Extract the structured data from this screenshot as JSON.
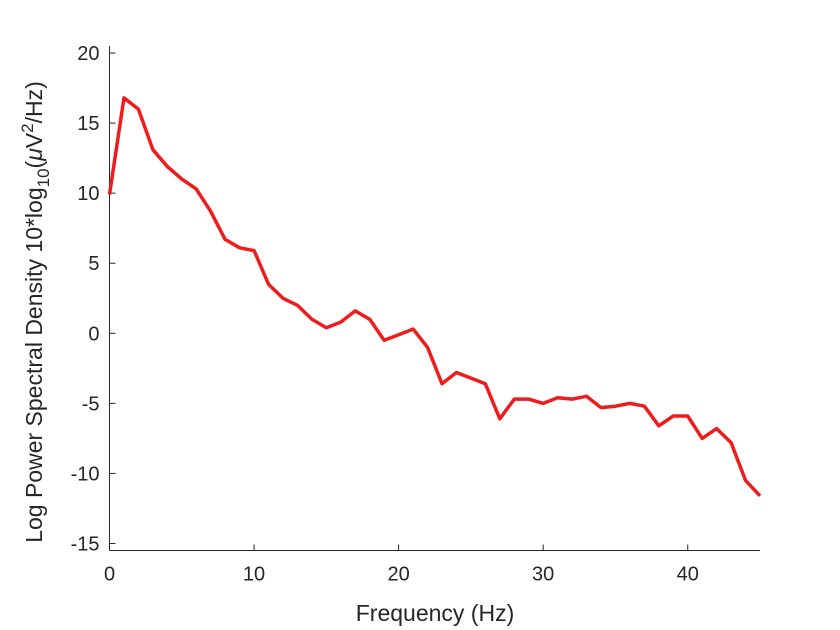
{
  "chart_data": {
    "type": "line",
    "title": "",
    "xlabel": "Frequency (Hz)",
    "ylabel_parts": [
      "Log Power Spectral Density 10*log",
      "10",
      "(",
      "μ",
      "V",
      "2",
      "/Hz)"
    ],
    "xlim": [
      0,
      45
    ],
    "ylim": [
      -15.5,
      20.5
    ],
    "xticks": [
      0,
      10,
      20,
      30,
      40
    ],
    "yticks": [
      -15,
      -10,
      -5,
      0,
      5,
      10,
      15,
      20
    ],
    "grid": false,
    "line_color": "#ee1c1c",
    "series": [
      {
        "x": [
          0,
          1,
          2,
          3,
          4,
          5,
          6,
          7,
          8,
          9,
          10,
          11,
          12,
          13,
          14,
          15,
          16,
          17,
          18,
          19,
          20,
          21,
          22,
          23,
          24,
          25,
          26,
          27,
          28,
          29,
          30,
          31,
          32,
          33,
          34,
          35,
          36,
          37,
          38,
          39,
          40,
          41,
          42,
          43,
          44,
          45
        ],
        "values": [
          9.9,
          16.8,
          16.0,
          13.1,
          11.9,
          11.0,
          10.3,
          8.7,
          6.7,
          6.1,
          5.9,
          3.5,
          2.5,
          2.0,
          1.0,
          0.4,
          0.8,
          1.6,
          1.0,
          -0.5,
          -0.1,
          0.3,
          -1.0,
          -3.6,
          -2.8,
          -3.2,
          -3.6,
          -6.1,
          -4.7,
          -4.7,
          -5.0,
          -4.6,
          -4.7,
          -4.5,
          -5.3,
          -5.2,
          -5.0,
          -5.2,
          -6.6,
          -5.9,
          -5.9,
          -7.5,
          -6.8,
          -7.8,
          -10.5,
          -11.6
        ]
      }
    ]
  }
}
